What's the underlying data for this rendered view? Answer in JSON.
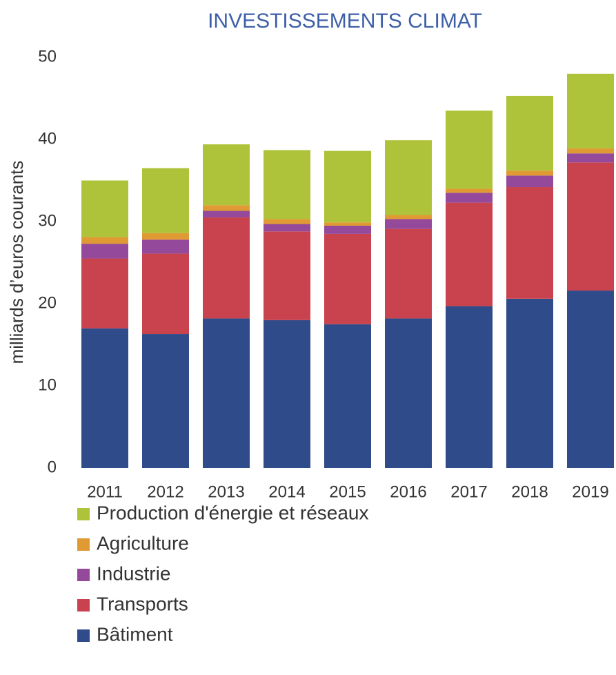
{
  "chart_data": {
    "type": "stacked_bar",
    "title": "INVESTISSEMENTS CLIMAT",
    "y_label": "milliards d’euros courants",
    "categories": [
      "2011",
      "2012",
      "2013",
      "2014",
      "2015",
      "2016",
      "2017",
      "2018",
      "2019"
    ],
    "series": [
      {
        "name": "Bâtiment",
        "color": "#2f4b8a",
        "values": [
          17.0,
          16.3,
          18.2,
          18.0,
          17.5,
          18.2,
          19.7,
          20.6,
          21.6
        ]
      },
      {
        "name": "Transports",
        "color": "#c9434e",
        "values": [
          8.5,
          9.8,
          12.3,
          10.8,
          11.0,
          10.9,
          12.6,
          13.6,
          15.6
        ]
      },
      {
        "name": "Industrie",
        "color": "#94499a",
        "values": [
          1.8,
          1.7,
          0.8,
          0.9,
          1.0,
          1.2,
          1.2,
          1.4,
          1.1
        ]
      },
      {
        "name": "Agriculture",
        "color": "#e09a33",
        "values": [
          0.8,
          0.8,
          0.7,
          0.6,
          0.4,
          0.5,
          0.5,
          0.6,
          0.6
        ]
      },
      {
        "name": "Production d'énergie et réseaux",
        "color": "#aec33a",
        "values": [
          6.9,
          7.9,
          7.4,
          8.4,
          8.7,
          9.1,
          9.5,
          9.1,
          9.1
        ]
      }
    ],
    "ylim": [
      0,
      50
    ],
    "yticks": [
      0,
      10,
      20,
      30,
      40,
      50
    ],
    "grid": false
  }
}
